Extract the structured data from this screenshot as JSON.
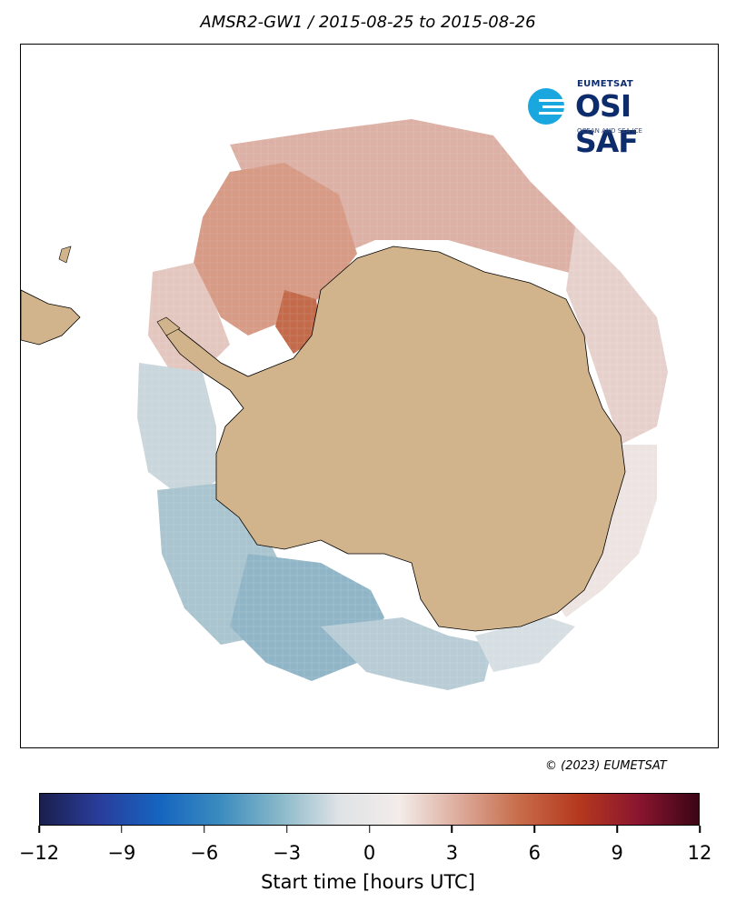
{
  "title": "AMSR2-GW1 / 2015-08-25 to 2015-08-26",
  "logo": {
    "org": "EUMETSAT",
    "brand": "OSI SAF",
    "tagline": "OCEAN AND SEA ICE",
    "icon": "osi-saf-logo-mark",
    "color": "#0d2c6c",
    "accent": "#1aa7e0"
  },
  "copyright": "© (2023) EUMETSAT",
  "colorbar": {
    "label": "Start time [hours UTC]",
    "min": -12,
    "max": 12,
    "ticks": [
      "−12",
      "−9",
      "−6",
      "−3",
      "0",
      "3",
      "6",
      "9",
      "12"
    ],
    "stops": [
      "#1a1f4d",
      "#2a3d9c",
      "#1565c0",
      "#3b8bbf",
      "#88b8c9",
      "#dfe3e6",
      "#f3ece9",
      "#ddab9c",
      "#c76c4a",
      "#b5381e",
      "#8a1530",
      "#3b0515"
    ]
  },
  "map": {
    "projection": "south-polar-stereographic",
    "land_color": "#d2b48c",
    "ocean_color": "#ffffff",
    "regions": [
      {
        "name": "atlantic-sector",
        "value_hours": 2.5
      },
      {
        "name": "weddell-sea",
        "value_hours": 3.5
      },
      {
        "name": "indian-ocean-sector",
        "value_hours": 2.0
      },
      {
        "name": "east-antarctic-coast",
        "value_hours": 0.5
      },
      {
        "name": "ross-sea",
        "value_hours": -1.5
      },
      {
        "name": "amundsen-bellingshausen",
        "value_hours": -4.0
      },
      {
        "name": "drake-passage",
        "value_hours": -2.5
      }
    ]
  }
}
